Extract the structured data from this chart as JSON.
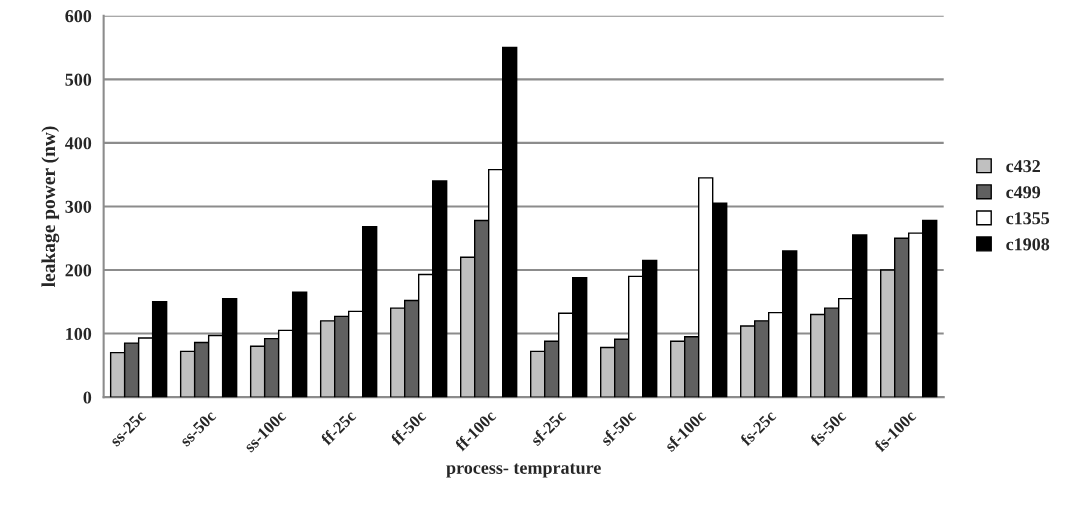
{
  "chart_data": {
    "type": "bar",
    "xlabel": "process- temprature",
    "ylabel": "leakage power (nw)",
    "categories": [
      "ss-25c",
      "ss-50c",
      "ss-100c",
      "ff-25c",
      "ff-50c",
      "ff-100c",
      "sf-25c",
      "sf-50c",
      "sf-100c",
      "fs-25c",
      "fs-50c",
      "fs-100c"
    ],
    "series": [
      {
        "name": "c432",
        "color": "#c0c0c0",
        "values": [
          70,
          72,
          80,
          120,
          140,
          220,
          72,
          78,
          88,
          112,
          130,
          200
        ]
      },
      {
        "name": "c499",
        "color": "#606060",
        "values": [
          85,
          86,
          92,
          127,
          152,
          278,
          88,
          91,
          95,
          120,
          140,
          250
        ]
      },
      {
        "name": "c1355",
        "color": "#ffffff",
        "values": [
          93,
          97,
          105,
          135,
          193,
          358,
          132,
          190,
          345,
          133,
          155,
          258
        ]
      },
      {
        "name": "c1908",
        "color": "#000000",
        "values": [
          150,
          155,
          165,
          268,
          340,
          550,
          188,
          215,
          305,
          230,
          255,
          278
        ]
      }
    ],
    "ylim": [
      0,
      600
    ],
    "yticks": [
      0,
      100,
      200,
      300,
      400,
      500,
      600
    ],
    "grid": "y",
    "legend": "right"
  }
}
